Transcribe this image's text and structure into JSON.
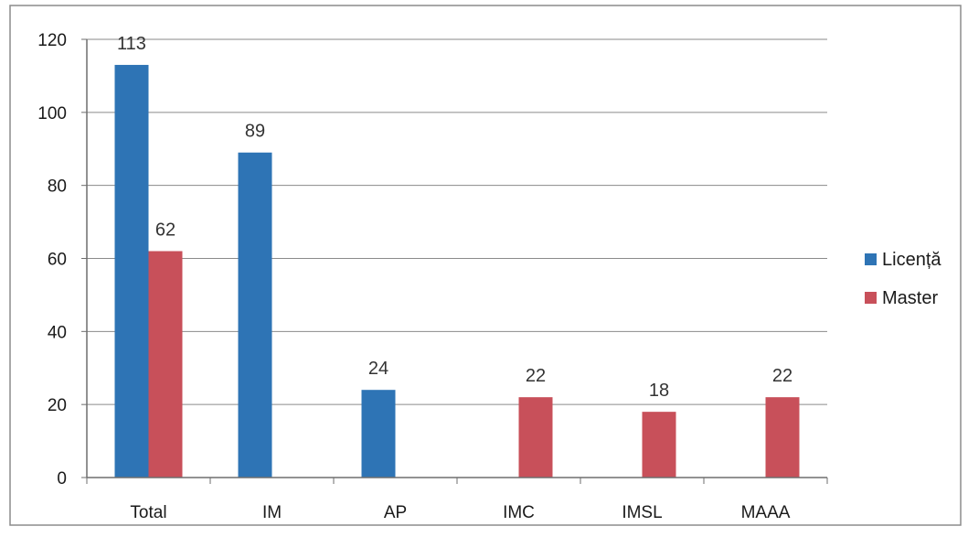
{
  "chart_data": {
    "type": "bar",
    "categories": [
      "Total",
      "IM",
      "AP",
      "IMC",
      "IMSL",
      "MAAA"
    ],
    "series": [
      {
        "name": "Licență",
        "color": "#2e74b5",
        "values": [
          113,
          89,
          24,
          null,
          null,
          null
        ],
        "labels": [
          "113",
          "89",
          "24",
          "",
          "",
          ""
        ]
      },
      {
        "name": "Master",
        "color": "#c8505a",
        "values": [
          62,
          null,
          null,
          22,
          18,
          22
        ],
        "labels": [
          "62",
          "",
          "",
          "22",
          "18",
          "22"
        ]
      }
    ],
    "ylim": [
      0,
      120
    ],
    "yticks": [
      "0",
      "20",
      "40",
      "60",
      "80",
      "100",
      "120"
    ],
    "grid": true,
    "legend_position": "right"
  }
}
